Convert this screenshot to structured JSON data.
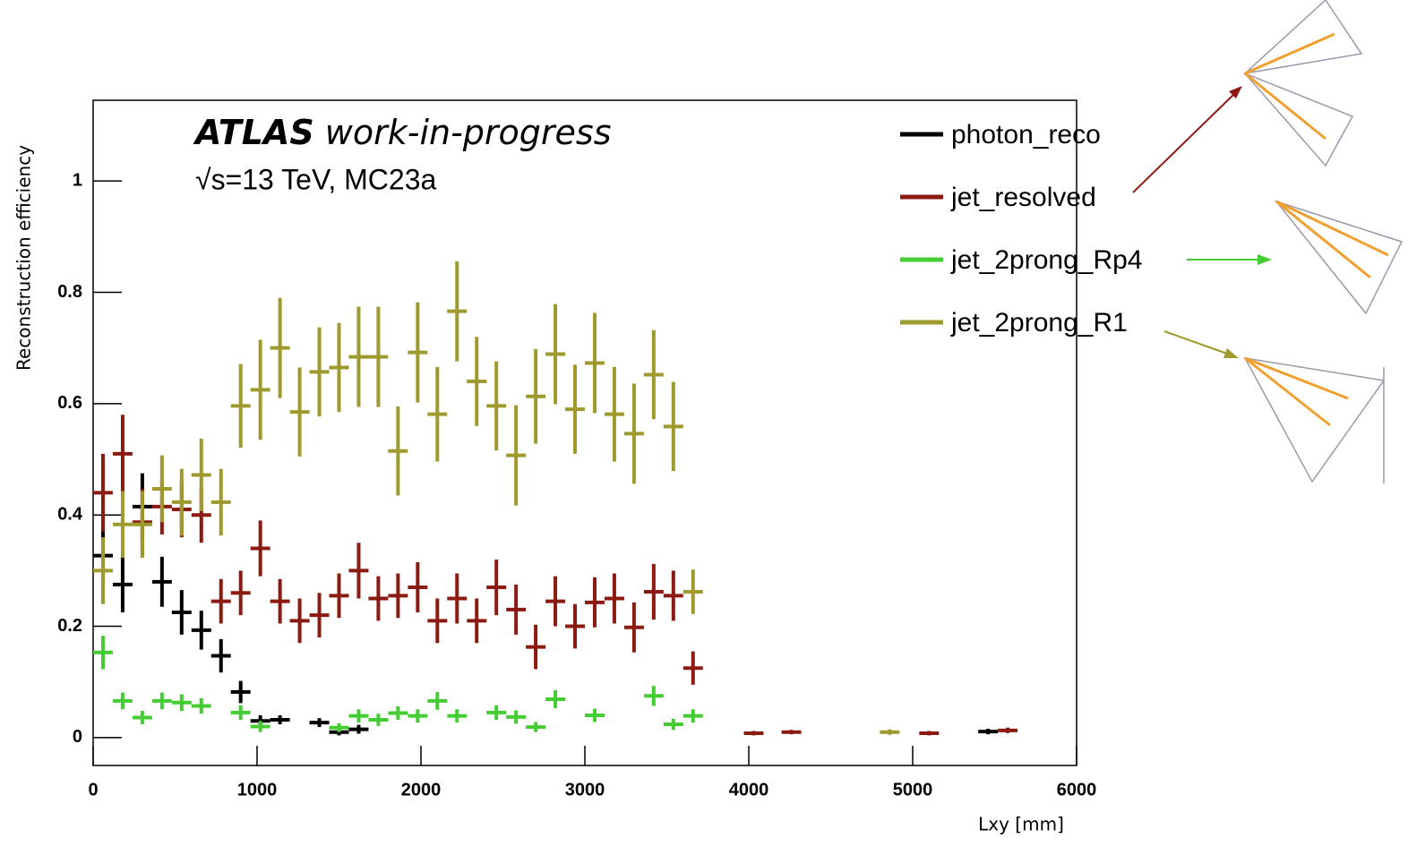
{
  "chart_data": {
    "type": "errorbar",
    "title": {
      "bold": "ATLAS",
      "rest": "work-in-progress"
    },
    "subtitle": "√s=13 TeV, MC23a",
    "y_label": "Reconstruction efficiency",
    "x_label": "Lxy [mm]",
    "xlim": [
      0,
      6000
    ],
    "xticks": [
      0,
      1000,
      2000,
      3000,
      4000,
      5000,
      6000
    ],
    "ylim": [
      -0.05,
      1.145
    ],
    "yticks": [
      0,
      0.2,
      0.4,
      0.6,
      0.8,
      1
    ],
    "xerr": 60,
    "series": [
      {
        "name": "photon_reco",
        "color": "#000000",
        "x": [
          60,
          180,
          300,
          420,
          540,
          660,
          780,
          900,
          1020,
          1140,
          1380,
          1500,
          1620,
          5460
        ],
        "values": [
          0.327,
          0.275,
          0.415,
          0.28,
          0.225,
          0.193,
          0.147,
          0.082,
          0.03,
          0.032,
          0.027,
          0.01,
          0.015,
          0.011
        ],
        "errors": [
          0.05,
          0.05,
          0.06,
          0.045,
          0.04,
          0.035,
          0.03,
          0.02,
          0.01,
          0.008,
          0.008,
          0.006,
          0.008,
          0.005
        ]
      },
      {
        "name": "jet_resolved",
        "color": "#8b1a10",
        "x": [
          60,
          180,
          300,
          420,
          540,
          660,
          780,
          900,
          1020,
          1140,
          1260,
          1380,
          1500,
          1620,
          1740,
          1860,
          1980,
          2100,
          2220,
          2340,
          2460,
          2580,
          2700,
          2820,
          2940,
          3060,
          3180,
          3300,
          3420,
          3540,
          3660,
          4030,
          4260,
          5100,
          5580
        ],
        "values": [
          0.44,
          0.51,
          0.387,
          0.415,
          0.41,
          0.4,
          0.245,
          0.26,
          0.34,
          0.245,
          0.21,
          0.22,
          0.255,
          0.3,
          0.25,
          0.255,
          0.27,
          0.21,
          0.25,
          0.21,
          0.27,
          0.23,
          0.163,
          0.245,
          0.2,
          0.243,
          0.25,
          0.198,
          0.262,
          0.255,
          0.125,
          0.008,
          0.01,
          0.008,
          0.013
        ],
        "errors": [
          0.07,
          0.07,
          0.06,
          0.05,
          0.05,
          0.05,
          0.04,
          0.04,
          0.05,
          0.04,
          0.04,
          0.04,
          0.04,
          0.05,
          0.04,
          0.04,
          0.045,
          0.04,
          0.045,
          0.04,
          0.05,
          0.045,
          0.04,
          0.045,
          0.04,
          0.045,
          0.045,
          0.045,
          0.05,
          0.045,
          0.03,
          0.004,
          0.004,
          0.004,
          0.005
        ]
      },
      {
        "name": "jet_2prong_Rp4",
        "color": "#44cc33",
        "x": [
          60,
          180,
          300,
          420,
          540,
          660,
          900,
          1020,
          1500,
          1620,
          1740,
          1860,
          1980,
          2100,
          2220,
          2460,
          2580,
          2700,
          2820,
          3060,
          3420,
          3540,
          3660
        ],
        "values": [
          0.153,
          0.066,
          0.036,
          0.066,
          0.063,
          0.057,
          0.045,
          0.02,
          0.018,
          0.039,
          0.032,
          0.044,
          0.039,
          0.066,
          0.039,
          0.045,
          0.037,
          0.019,
          0.069,
          0.04,
          0.075,
          0.024,
          0.039
        ],
        "errors": [
          0.03,
          0.015,
          0.012,
          0.015,
          0.015,
          0.014,
          0.013,
          0.01,
          0.008,
          0.012,
          0.011,
          0.012,
          0.012,
          0.016,
          0.012,
          0.013,
          0.012,
          0.009,
          0.016,
          0.012,
          0.018,
          0.01,
          0.012
        ]
      },
      {
        "name": "jet_2prong_R1",
        "color": "#9e9a2e",
        "x": [
          60,
          180,
          300,
          420,
          540,
          660,
          780,
          900,
          1020,
          1140,
          1260,
          1380,
          1500,
          1620,
          1740,
          1860,
          1980,
          2100,
          2220,
          2340,
          2460,
          2580,
          2700,
          2820,
          2940,
          3060,
          3180,
          3300,
          3420,
          3540,
          3660,
          4860
        ],
        "values": [
          0.3,
          0.383,
          0.383,
          0.447,
          0.423,
          0.472,
          0.423,
          0.596,
          0.625,
          0.7,
          0.585,
          0.657,
          0.665,
          0.684,
          0.684,
          0.515,
          0.692,
          0.581,
          0.766,
          0.64,
          0.596,
          0.507,
          0.613,
          0.689,
          0.59,
          0.673,
          0.581,
          0.546,
          0.652,
          0.559,
          0.262,
          0.01
        ],
        "errors": [
          0.06,
          0.06,
          0.06,
          0.06,
          0.06,
          0.065,
          0.06,
          0.075,
          0.09,
          0.09,
          0.08,
          0.08,
          0.08,
          0.09,
          0.09,
          0.08,
          0.09,
          0.085,
          0.09,
          0.08,
          0.08,
          0.09,
          0.085,
          0.09,
          0.08,
          0.09,
          0.085,
          0.09,
          0.08,
          0.08,
          0.04,
          0.005
        ]
      }
    ]
  }
}
